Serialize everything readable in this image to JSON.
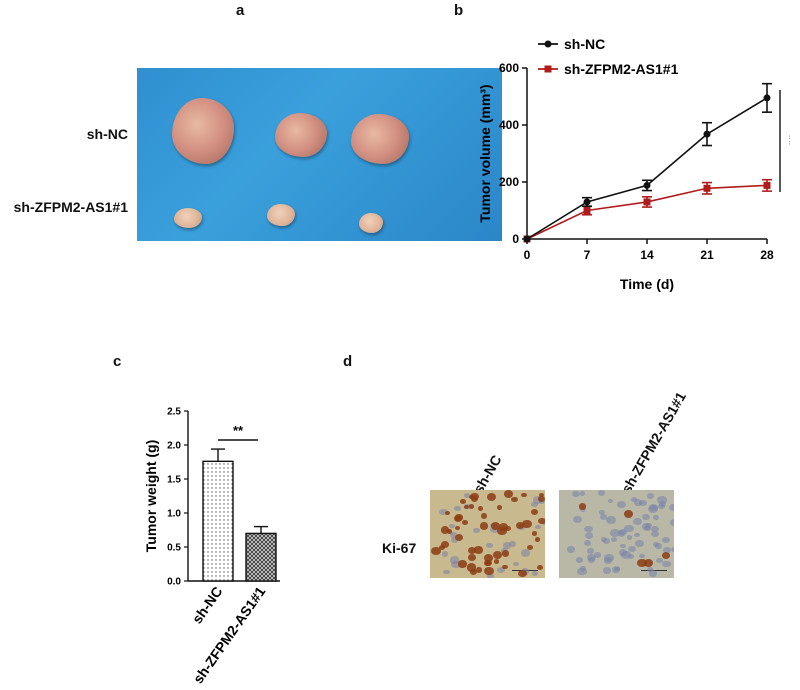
{
  "panels": {
    "a": "a",
    "b": "b",
    "c": "c",
    "d": "d"
  },
  "panel_a": {
    "row_labels": [
      "sh-NC",
      "sh-ZFPM2-AS1#1"
    ]
  },
  "panel_d": {
    "marker": "Ki-67",
    "columns": [
      "sh-NC",
      "sh-ZFPM2-AS1#1"
    ]
  },
  "chart_data": [
    {
      "id": "b",
      "type": "line",
      "title": "",
      "xlabel": "Time (d)",
      "ylabel": "Tumor volume (mm³)",
      "x": [
        0,
        7,
        14,
        21,
        28
      ],
      "xticks": [
        "0",
        "7",
        "14",
        "21",
        "28"
      ],
      "yticks": [
        "0",
        "200",
        "400",
        "600"
      ],
      "xlim": [
        0,
        28
      ],
      "ylim": [
        0,
        600
      ],
      "legend_position": "top-left",
      "significance": "**",
      "series": [
        {
          "name": "sh-NC",
          "color": "#111111",
          "marker": "circle",
          "values": [
            0,
            130,
            188,
            368,
            495
          ],
          "errors": [
            0,
            15,
            18,
            40,
            50
          ]
        },
        {
          "name": "sh-ZFPM2-AS1#1",
          "color": "#b01c1c",
          "marker": "square",
          "values": [
            0,
            100,
            130,
            178,
            188
          ],
          "errors": [
            0,
            15,
            18,
            20,
            20
          ]
        }
      ]
    },
    {
      "id": "c",
      "type": "bar",
      "title": "",
      "xlabel": "",
      "ylabel": "Tumor weight (g)",
      "categories": [
        "sh-NC",
        "sh-ZFPM2-AS1#1"
      ],
      "values": [
        1.76,
        0.7
      ],
      "errors": [
        0.18,
        0.1
      ],
      "patterns": [
        "dots",
        "crosshatch"
      ],
      "yticks": [
        "0.0",
        "0.5",
        "1.0",
        "1.5",
        "2.0",
        "2.5"
      ],
      "ylim": [
        0,
        2.5
      ],
      "significance": "**"
    }
  ]
}
